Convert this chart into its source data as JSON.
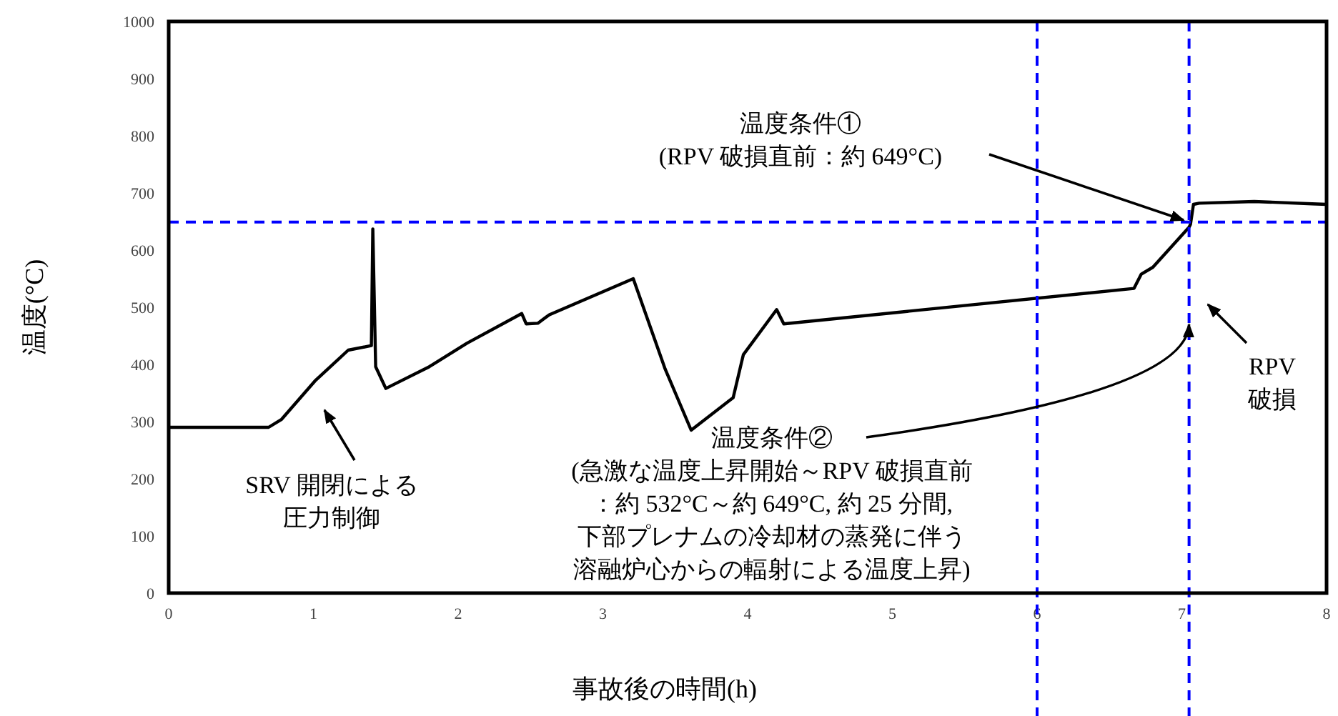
{
  "chart_data": {
    "type": "line",
    "xlabel": "事故後の時間(h)",
    "ylabel": "温度(°C)",
    "x": [
      0,
      0.69,
      0.78,
      1.01,
      1.24,
      1.4,
      1.41,
      1.43,
      1.5,
      1.8,
      2.06,
      2.44,
      2.47,
      2.55,
      2.63,
      3.21,
      3.43,
      3.61,
      3.9,
      3.97,
      4.2,
      4.25,
      6.67,
      6.72,
      6.8,
      7.05,
      7.06,
      7.08,
      7.12,
      7.5,
      7.9,
      8
    ],
    "series": [
      {
        "color": "#000000",
        "values": [
          290,
          290,
          304,
          371,
          425,
          433,
          637,
          396,
          358,
          396,
          437,
          489,
          471,
          472,
          487,
          550,
          392,
          285,
          342,
          417,
          496,
          471,
          533,
          558,
          570,
          640,
          645,
          680,
          682,
          685,
          681,
          680
        ]
      }
    ],
    "xlim": [
      0,
      8
    ],
    "xticks": [
      0,
      1,
      2,
      3,
      4,
      5,
      6,
      7,
      8
    ],
    "ylim": [
      0,
      1000
    ],
    "yticks": [
      0,
      100,
      200,
      300,
      400,
      500,
      600,
      700,
      800,
      900,
      1000
    ],
    "grid": false,
    "legend": false,
    "marker": "none",
    "line_style": "solid",
    "ref_lines": [
      {
        "axis": "y",
        "value": 649,
        "color": "#0000ff",
        "line_style": "dashed"
      },
      {
        "axis": "x",
        "value": 6.0,
        "color": "#0000ff",
        "line_style": "dashed"
      },
      {
        "axis": "x",
        "value": 7.05,
        "color": "#0000ff",
        "line_style": "dashed"
      }
    ],
    "annotations": [
      "温度条件①(RPV 破損直前：約 649°C)",
      "SRV 開閉による圧力制御",
      "RPV破損",
      {
        "text": "温度条件②(急激な温度上昇開始～RPV 破損直前：約 532°C～約 649°C, 約 25 分間,下部プレナムの冷却材の蒸発に伴う溶融炉心からの輻射による温度上昇)",
        "x": 7.05,
        "y": 470
      }
    ]
  }
}
